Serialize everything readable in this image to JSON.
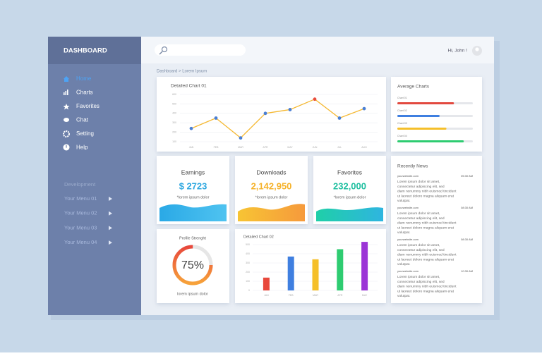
{
  "sidebar": {
    "title": "DASHBOARD",
    "menu": [
      "Home",
      "Charts",
      "Favorites",
      "Chat",
      "Setting",
      "Help"
    ],
    "section": "Development",
    "submenu": [
      "Your Menu 01",
      "Your Menu 02",
      "Your Menu 03",
      "Your Menu 04"
    ]
  },
  "header": {
    "greeting": "Hi, John !",
    "breadcrumb": "Dashboard > Lorem Ipsum"
  },
  "line_chart": {
    "type": "line",
    "title": "Detailed Chart 01",
    "categories": [
      "JAN",
      "FEB",
      "MAR",
      "APR",
      "MAY",
      "JUN",
      "JUL",
      "AUG"
    ],
    "values": [
      240,
      350,
      140,
      400,
      440,
      550,
      350,
      450
    ],
    "color": "#f5b830",
    "marker_colors": [
      "#4a7fd4",
      "#4a7fd4",
      "#4a7fd4",
      "#4a7fd4",
      "#4a7fd4",
      "#e84c3d",
      "#4a7fd4",
      "#4a7fd4"
    ],
    "ylim": [
      100,
      600
    ],
    "yticks": [
      100,
      200,
      300,
      400,
      500,
      600
    ],
    "grid": true
  },
  "average_charts": {
    "title": "Average Charts",
    "xlim": [
      0,
      100
    ],
    "bars": [
      {
        "name": "Chart 01",
        "value": 75,
        "color": "#e2493f"
      },
      {
        "name": "Chart 02",
        "value": 56,
        "color": "#3f7fe0"
      },
      {
        "name": "Chart 03",
        "value": 65,
        "color": "#f5bf2a"
      },
      {
        "name": "Chart 04",
        "value": 88,
        "color": "#2ecc71"
      }
    ]
  },
  "stats": [
    {
      "label": "Earnings",
      "value": "$ 2723",
      "note": "*lorem ipsum dolor",
      "color": "#2fa8e0"
    },
    {
      "label": "Downloads",
      "value": "2,142,950",
      "note": "*lorem ipsum dolor",
      "color": "#f5b22a"
    },
    {
      "label": "Favorites",
      "value": "232,000",
      "note": "*lorem ipsum dolor",
      "color": "#1fbfa0"
    }
  ],
  "profile": {
    "title": "Profile Strenght",
    "value": 75,
    "value_label": "75%",
    "note": "lorem ipsum dolor"
  },
  "bar_chart": {
    "type": "bar",
    "title": "Detailed Chart 02",
    "categories": [
      "JAN",
      "FEB",
      "MAR",
      "APR",
      "MAY"
    ],
    "values": [
      140,
      370,
      340,
      450,
      530
    ],
    "colors": [
      "#e8483c",
      "#3f7fe0",
      "#f5bf2a",
      "#2ecc71",
      "#9b34d6"
    ],
    "ylim": [
      0,
      600
    ],
    "yticks": [
      0,
      100,
      200,
      300,
      400,
      500
    ],
    "grid": true
  },
  "news": {
    "title": "Recently News",
    "items": [
      {
        "site": "yourwebsite.com",
        "time": "05:30 AM",
        "text": "Lorem ipsum dolor sit amet, consectetur adipiscing elit, sed diam nonummy nibh euismod tincidunt ut laoreet dolore magna aliquam erat volutpat."
      },
      {
        "site": "yourwebsite.com",
        "time": "08:30 AM",
        "text": "Lorem ipsum dolor sit amet, consectetur adipiscing elit, sed diam nonummy nibh euismod tincidunt ut laoreet dolore magna aliquam erat volutpat."
      },
      {
        "site": "yourwebsite.com",
        "time": "08:30 AM",
        "text": "Lorem ipsum dolor sit amet, consectetur adipiscing elit, sed diam nonummy nibh euismod tincidunt ut laoreet dolore magna aliquam erat volutpat."
      },
      {
        "site": "yourwebsite.com",
        "time": "10:30 AM",
        "text": "Lorem ipsum dolor sit amet, consectetur adipiscing elit, sed diam nonummy nibh euismod tincidunt ut laoreet dolore magna aliquam erat volutpat."
      }
    ]
  }
}
